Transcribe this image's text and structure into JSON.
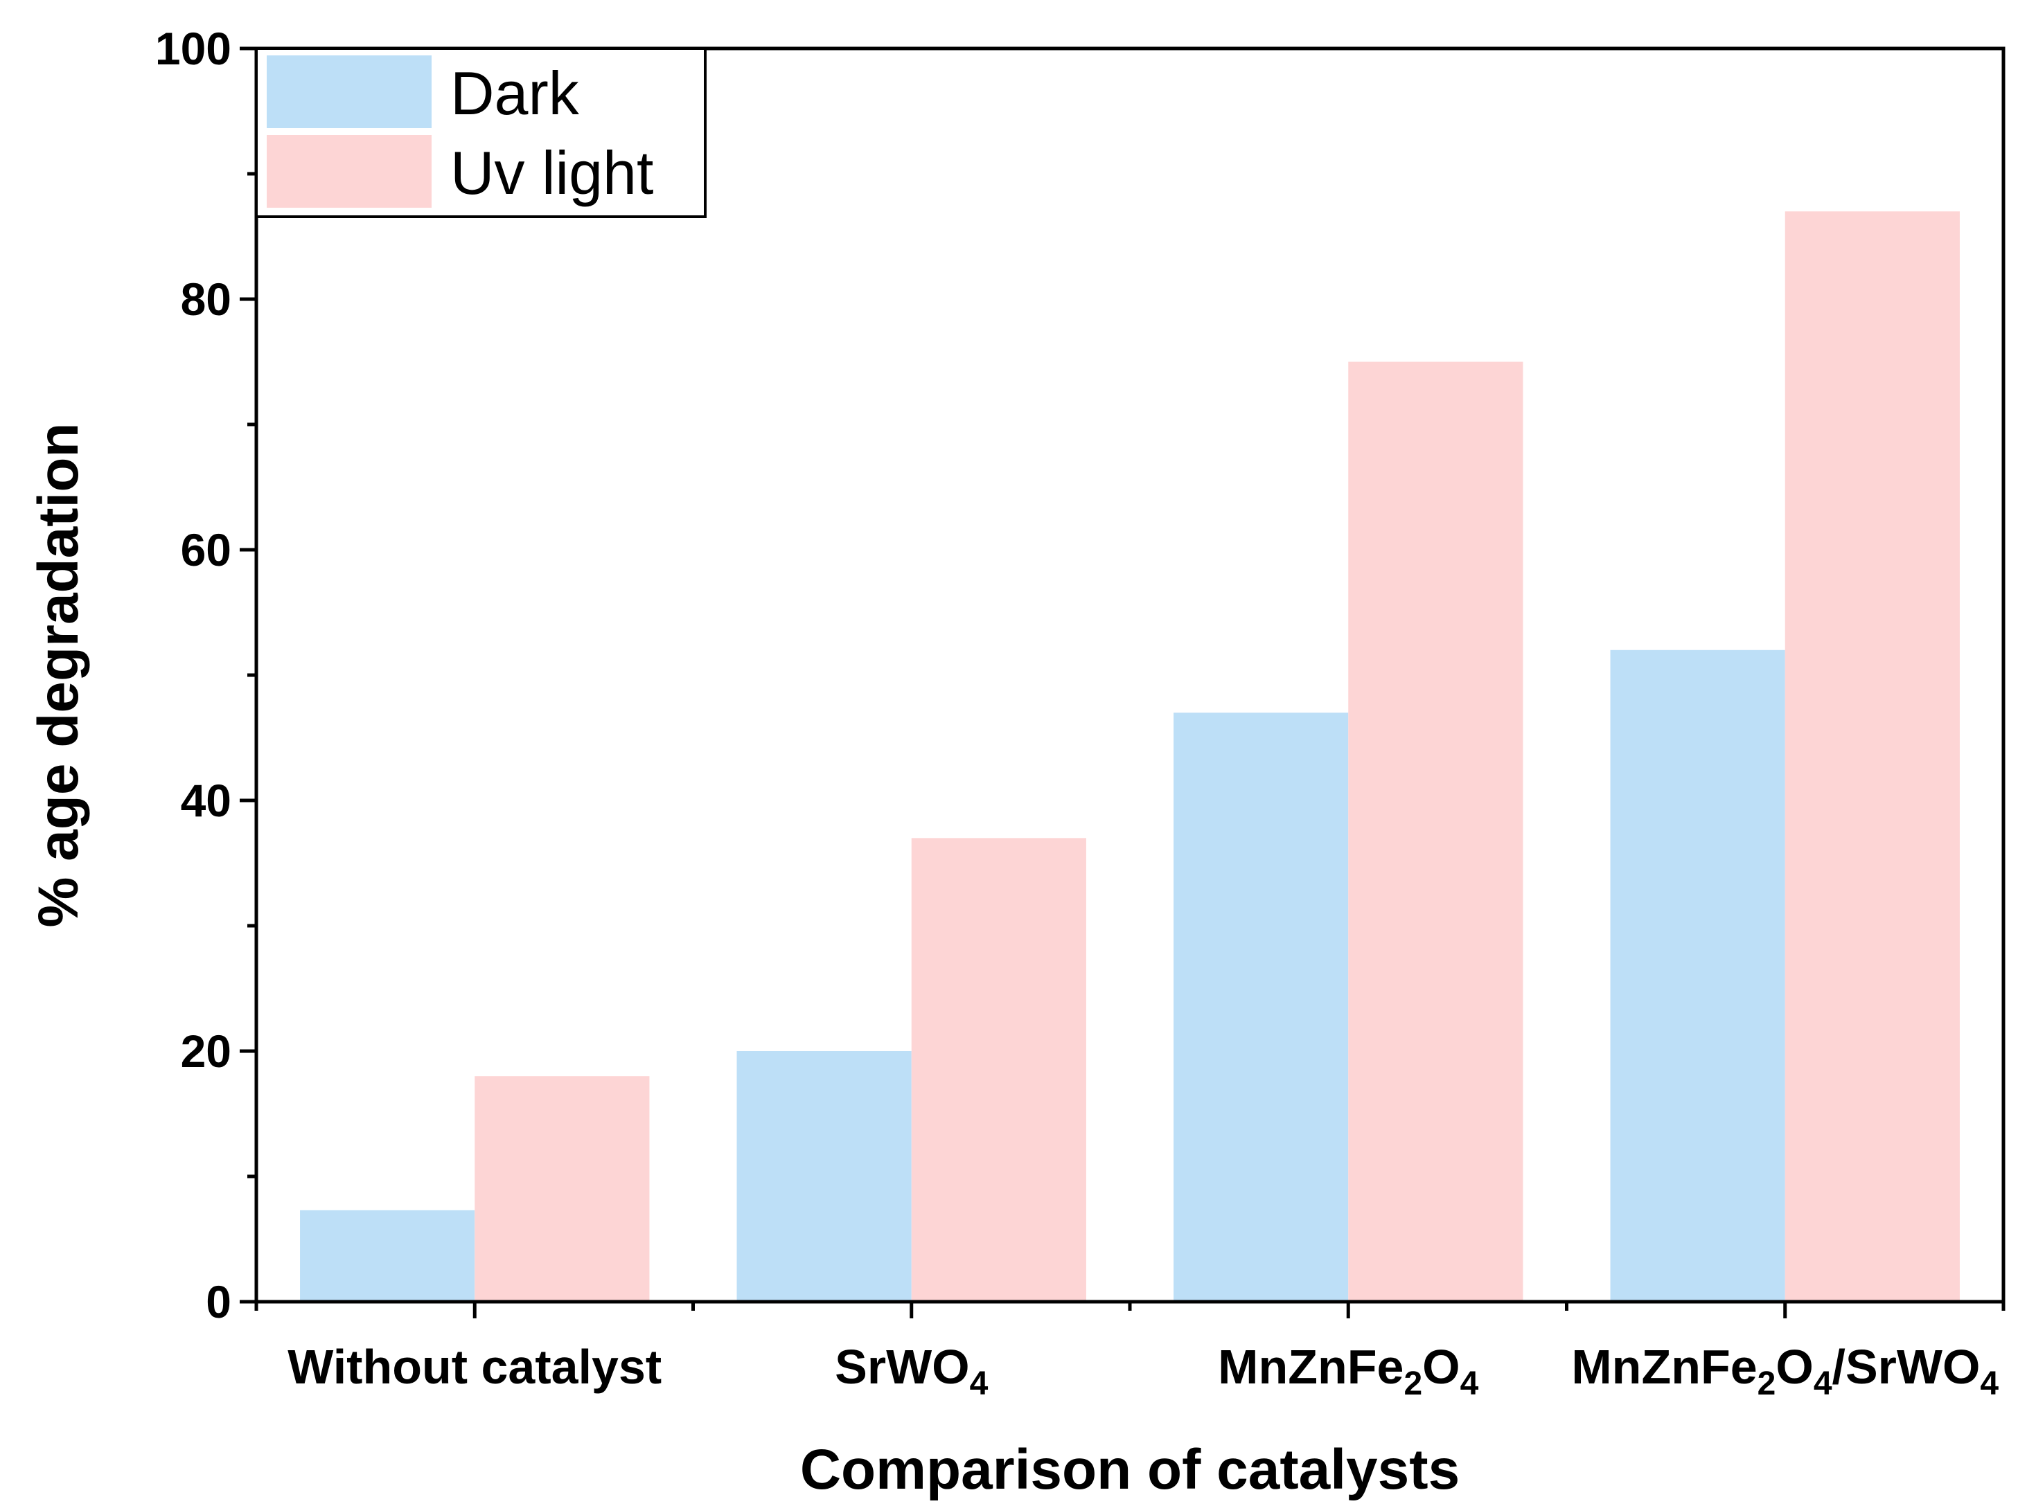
{
  "chart_data": {
    "type": "bar",
    "categories": [
      {
        "main": "Without catalyst",
        "parts": [
          {
            "t": "Without catalyst"
          }
        ]
      },
      {
        "main": "SrWO4",
        "parts": [
          {
            "t": "SrWO"
          },
          {
            "t": "4",
            "sub": true
          }
        ]
      },
      {
        "main": "MnZnFe2O4",
        "parts": [
          {
            "t": "MnZnFe"
          },
          {
            "t": "2",
            "sub": true
          },
          {
            "t": "O"
          },
          {
            "t": "4",
            "sub": true
          }
        ]
      },
      {
        "main": "MnZnFe2O4/SrWO4",
        "parts": [
          {
            "t": "MnZnFe"
          },
          {
            "t": "2",
            "sub": true
          },
          {
            "t": "O"
          },
          {
            "t": "4",
            "sub": true
          },
          {
            "t": "/SrWO"
          },
          {
            "t": "4",
            "sub": true
          }
        ]
      }
    ],
    "series": [
      {
        "name": "Dark",
        "color": "#bddff7",
        "values": [
          7.3,
          20,
          47,
          52
        ]
      },
      {
        "name": "Uv light",
        "color": "#fdd5d5",
        "values": [
          18,
          37,
          75,
          87
        ]
      }
    ],
    "xlabel": "Comparison of catalysts",
    "ylabel": "% age degradation",
    "ylim": [
      0,
      100
    ],
    "yticks": [
      0,
      20,
      40,
      60,
      80,
      100
    ],
    "legend": "top-left",
    "grid": false
  }
}
